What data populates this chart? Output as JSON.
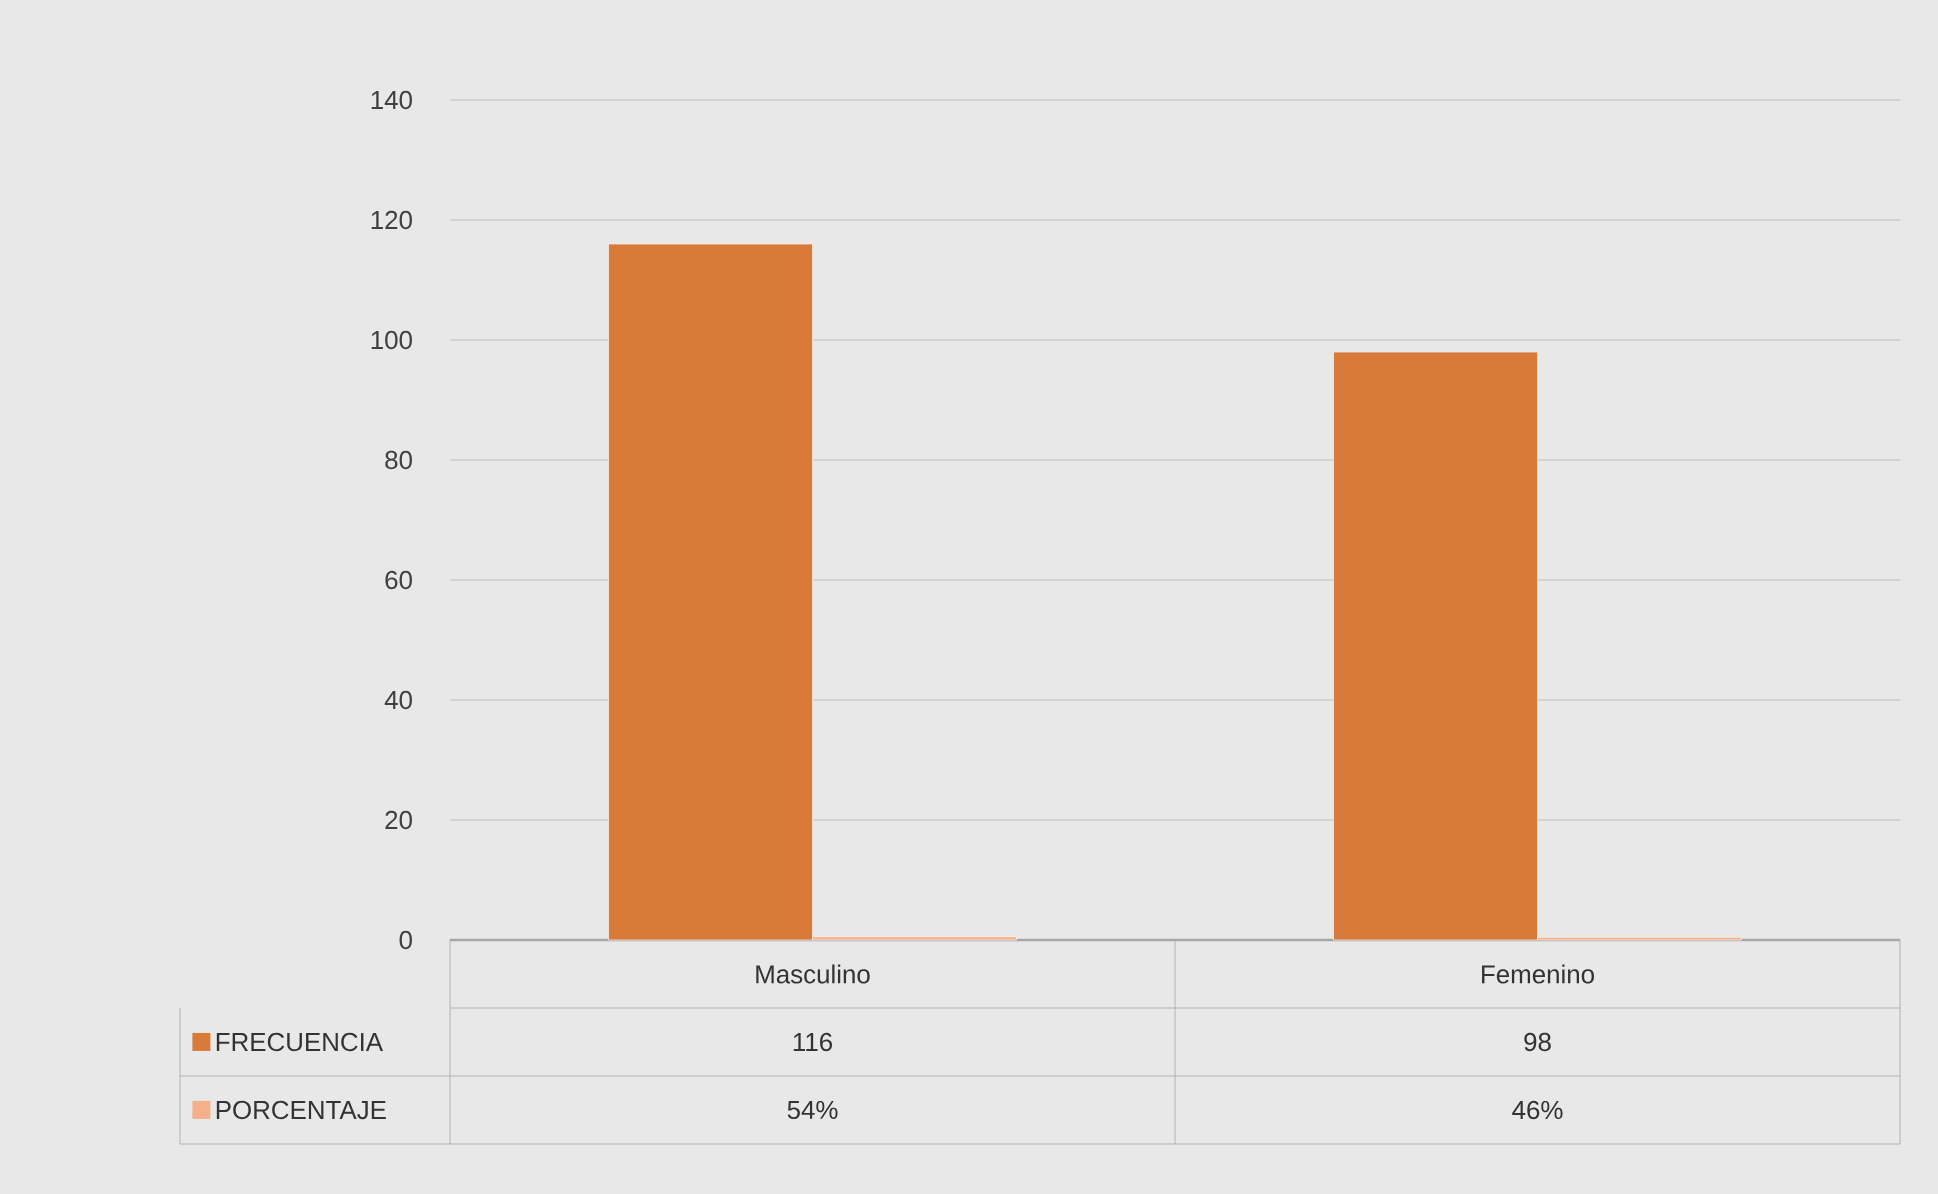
{
  "chart_data": {
    "type": "bar",
    "categories": [
      "Masculino",
      "Femenino"
    ],
    "series": [
      {
        "name": "FRECUENCIA",
        "color": "#d87a3a",
        "values": [
          116,
          98
        ],
        "value_labels": [
          "116",
          "98"
        ]
      },
      {
        "name": "PORCENTAJE",
        "color": "#f4b08a",
        "values": [
          0.54,
          0.46
        ],
        "value_labels": [
          "54%",
          "46%"
        ]
      }
    ],
    "ylim": [
      0,
      140
    ],
    "yticks": [
      0,
      20,
      40,
      60,
      80,
      100,
      120,
      140
    ],
    "grid": "y",
    "legend": "bottom left"
  }
}
